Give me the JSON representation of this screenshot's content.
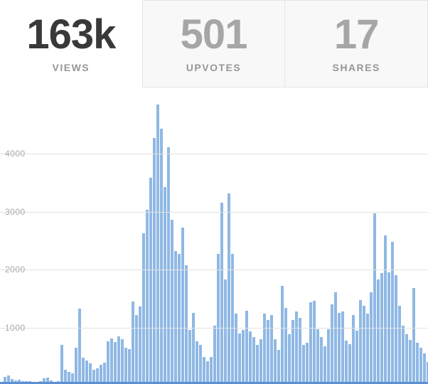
{
  "stats": {
    "tabs": [
      {
        "value": "163k",
        "label": "VIEWS",
        "active": true
      },
      {
        "value": "501",
        "label": "UPVOTES",
        "active": false
      },
      {
        "value": "17",
        "label": "SHARES",
        "active": false
      }
    ]
  },
  "chart_data": {
    "type": "bar",
    "title": "",
    "xlabel": "",
    "ylabel": "",
    "y_ticks": [
      4000,
      3000,
      2000,
      1000
    ],
    "ylim": [
      0,
      5140
    ],
    "grid": true,
    "legend": false,
    "x_tick_labels_visible": false,
    "values": [
      30,
      120,
      150,
      90,
      60,
      70,
      50,
      45,
      55,
      40,
      35,
      45,
      100,
      110,
      60,
      40,
      45,
      680,
      250,
      210,
      190,
      620,
      1300,
      450,
      410,
      350,
      250,
      270,
      330,
      370,
      740,
      790,
      730,
      820,
      770,
      630,
      600,
      1420,
      1190,
      1340,
      2600,
      3010,
      3560,
      4250,
      4820,
      4410,
      3400,
      4090,
      2840,
      2300,
      2250,
      2700,
      2050,
      930,
      1230,
      740,
      680,
      470,
      390,
      470,
      1000,
      2250,
      3130,
      1800,
      3290,
      2250,
      1220,
      870,
      930,
      1260,
      910,
      810,
      670,
      770,
      1220,
      1100,
      1190,
      770,
      590,
      1690,
      1310,
      860,
      1100,
      1250,
      1140,
      670,
      710,
      1410,
      1430,
      940,
      810,
      650,
      940,
      1370,
      1580,
      1230,
      1250,
      750,
      690,
      1190,
      920,
      1450,
      1350,
      1210,
      1580,
      2940,
      1800,
      1910,
      2560,
      1930,
      2450,
      1880,
      1350,
      1000,
      860,
      760,
      1660,
      710,
      630,
      530,
      380
    ],
    "bar_color": "#8fb8e4",
    "baseline_color": "#5d90d2",
    "gridline_color": "#e2e2e2",
    "tick_label_color": "#a9a9a9"
  },
  "colors": {
    "active_number": "#393939",
    "inactive_number": "#a6a6a6",
    "tab_label": "#969696",
    "inactive_tab_bg": "#f8f8f8",
    "tab_border": "#e6e6e6"
  }
}
